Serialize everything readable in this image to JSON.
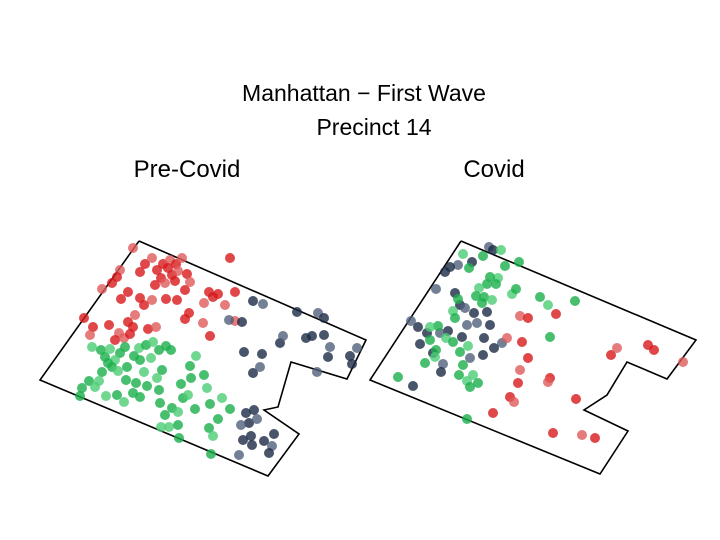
{
  "figure": {
    "title_line1": "Manhattan − First Wave",
    "title_line2": "Precinct 14"
  },
  "colors": {
    "red": "#d7191c",
    "red_light": "#e05a5a",
    "green": "#1aaf4b",
    "green_light": "#4ccd75",
    "navy": "#1c2b45",
    "navy_light": "#50607a",
    "outline": "#000000"
  },
  "chart_data": [
    {
      "type": "scatter",
      "title": "Pre-Covid",
      "marker": "circle",
      "axes_visible": false,
      "series": [
        {
          "color": "red",
          "points": [
            [
              120,
              270
            ],
            [
              117,
              277
            ],
            [
              112,
              283
            ],
            [
              102,
              289
            ],
            [
              128,
              292
            ],
            [
              121,
              299
            ],
            [
              133,
              248
            ],
            [
              145,
              264
            ],
            [
              140,
              272
            ],
            [
              152,
              258
            ],
            [
              157,
              270
            ],
            [
              163,
              264
            ],
            [
              170,
              260
            ],
            [
              176,
              264
            ],
            [
              168,
              268
            ],
            [
              182,
              258
            ],
            [
              161,
              278
            ],
            [
              172,
              275
            ],
            [
              178,
              271
            ],
            [
              187,
              274
            ],
            [
              155,
              285
            ],
            [
              165,
              283
            ],
            [
              175,
              281
            ],
            [
              185,
              290
            ],
            [
              190,
              282
            ],
            [
              177,
              300
            ],
            [
              166,
              299
            ],
            [
              152,
              300
            ],
            [
              140,
              298
            ],
            [
              144,
              305
            ],
            [
              135,
              315
            ],
            [
              128,
              322
            ],
            [
              133,
              327
            ],
            [
              119,
              333
            ],
            [
              109,
              325
            ],
            [
              115,
              340
            ],
            [
              124,
              338
            ],
            [
              130,
              334
            ],
            [
              148,
              329
            ],
            [
              156,
              327
            ],
            [
              185,
              319
            ],
            [
              189,
              313
            ],
            [
              204,
              303
            ],
            [
              209,
              292
            ],
            [
              213,
              297
            ],
            [
              203,
              323
            ],
            [
              210,
              336
            ],
            [
              218,
              294
            ],
            [
              225,
              305
            ],
            [
              230,
              258
            ],
            [
              235,
              292
            ],
            [
              235,
              321
            ],
            [
              93,
              327
            ],
            [
              84,
              318
            ],
            [
              90,
              335
            ]
          ]
        },
        {
          "color": "green",
          "points": [
            [
              92,
              347
            ],
            [
              101,
              350
            ],
            [
              105,
              357
            ],
            [
              110,
              349
            ],
            [
              120,
              353
            ],
            [
              125,
              347
            ],
            [
              115,
              360
            ],
            [
              108,
              363
            ],
            [
              102,
              372
            ],
            [
              99,
              381
            ],
            [
              89,
              381
            ],
            [
              82,
              388
            ],
            [
              95,
              387
            ],
            [
              80,
              396
            ],
            [
              112,
              367
            ],
            [
              118,
              371
            ],
            [
              127,
              367
            ],
            [
              134,
              356
            ],
            [
              139,
              348
            ],
            [
              146,
              345
            ],
            [
              140,
              360
            ],
            [
              153,
              342
            ],
            [
              159,
              350
            ],
            [
              166,
              346
            ],
            [
              151,
              358
            ],
            [
              162,
              370
            ],
            [
              171,
              350
            ],
            [
              144,
              372
            ],
            [
              136,
              383
            ],
            [
              147,
              386
            ],
            [
              157,
              378
            ],
            [
              126,
              380
            ],
            [
              133,
              393
            ],
            [
              124,
              402
            ],
            [
              140,
              397
            ],
            [
              117,
              395
            ],
            [
              106,
              396
            ],
            [
              159,
              390
            ],
            [
              160,
              403
            ],
            [
              161,
              427
            ],
            [
              165,
              415
            ],
            [
              172,
              408
            ],
            [
              178,
              412
            ],
            [
              183,
              398
            ],
            [
              181,
              384
            ],
            [
              188,
              395
            ],
            [
              191,
              378
            ],
            [
              190,
              366
            ],
            [
              196,
              356
            ],
            [
              195,
              409
            ],
            [
              204,
              375
            ],
            [
              207,
              388
            ],
            [
              210,
              404
            ],
            [
              179,
              438
            ],
            [
              169,
              427
            ],
            [
              178,
              425
            ],
            [
              209,
              428
            ],
            [
              213,
              436
            ],
            [
              211,
              454
            ],
            [
              218,
              419
            ],
            [
              222,
              398
            ],
            [
              230,
              409
            ]
          ]
        },
        {
          "color": "navy",
          "points": [
            [
              229,
              320
            ],
            [
              242,
              322
            ],
            [
              253,
              301
            ],
            [
              263,
              304
            ],
            [
              244,
              352
            ],
            [
              253,
              373
            ],
            [
              260,
              367
            ],
            [
              262,
              354
            ],
            [
              280,
              343
            ],
            [
              283,
              336
            ],
            [
              297,
              312
            ],
            [
              306,
              338
            ],
            [
              318,
              313
            ],
            [
              312,
              336
            ],
            [
              324,
              335
            ],
            [
              330,
              347
            ],
            [
              328,
              357
            ],
            [
              324,
              318
            ],
            [
              317,
              372
            ],
            [
              352,
              364
            ],
            [
              350,
              356
            ],
            [
              357,
              348
            ],
            [
              254,
              410
            ],
            [
              249,
              423
            ],
            [
              241,
              425
            ],
            [
              251,
              436
            ],
            [
              243,
              440
            ],
            [
              239,
              455
            ],
            [
              252,
              445
            ],
            [
              264,
              441
            ],
            [
              272,
              446
            ],
            [
              274,
              434
            ],
            [
              269,
              453
            ],
            [
              257,
              419
            ],
            [
              246,
              413
            ]
          ]
        }
      ]
    },
    {
      "type": "scatter",
      "title": "Covid",
      "marker": "circle",
      "axes_visible": false,
      "series": [
        {
          "color": "navy",
          "points": [
            [
              489,
              247
            ],
            [
              493,
              250
            ],
            [
              472,
              262
            ],
            [
              458,
              265
            ],
            [
              450,
              267
            ],
            [
              445,
              272
            ],
            [
              436,
              289
            ],
            [
              455,
              293
            ],
            [
              460,
              305
            ],
            [
              465,
              308
            ],
            [
              474,
              313
            ],
            [
              487,
              312
            ],
            [
              477,
              323
            ],
            [
              490,
              325
            ],
            [
              484,
              338
            ],
            [
              467,
              325
            ],
            [
              462,
              337
            ],
            [
              448,
              331
            ],
            [
              440,
              333
            ],
            [
              427,
              333
            ],
            [
              418,
              327
            ],
            [
              411,
              321
            ],
            [
              420,
              344
            ],
            [
              433,
              353
            ],
            [
              443,
              364
            ],
            [
              441,
              372
            ],
            [
              413,
              386
            ],
            [
              502,
              343
            ],
            [
              494,
              348
            ],
            [
              483,
              355
            ],
            [
              470,
              358
            ]
          ]
        },
        {
          "color": "green",
          "points": [
            [
              463,
              254
            ],
            [
              469,
              268
            ],
            [
              483,
              256
            ],
            [
              501,
              250
            ],
            [
              519,
              262
            ],
            [
              505,
              266
            ],
            [
              498,
              278
            ],
            [
              490,
              277
            ],
            [
              487,
              284
            ],
            [
              479,
              288
            ],
            [
              476,
              296
            ],
            [
              484,
              297
            ],
            [
              492,
              300
            ],
            [
              496,
              284
            ],
            [
              482,
              303
            ],
            [
              512,
              294
            ],
            [
              516,
              289
            ],
            [
              540,
              297
            ],
            [
              548,
              305
            ],
            [
              575,
              301
            ],
            [
              458,
              299
            ],
            [
              453,
              311
            ],
            [
              455,
              318
            ],
            [
              438,
              326
            ],
            [
              430,
              327
            ],
            [
              430,
              340
            ],
            [
              436,
              350
            ],
            [
              446,
              338
            ],
            [
              453,
              342
            ],
            [
              460,
              352
            ],
            [
              468,
              346
            ],
            [
              463,
              365
            ],
            [
              459,
              375
            ],
            [
              467,
              381
            ],
            [
              478,
              383
            ],
            [
              470,
              387
            ],
            [
              473,
              375
            ],
            [
              398,
              377
            ],
            [
              425,
              363
            ],
            [
              435,
              357
            ],
            [
              550,
              337
            ],
            [
              467,
              419
            ]
          ]
        },
        {
          "color": "red",
          "points": [
            [
              520,
              316
            ],
            [
              528,
              318
            ],
            [
              556,
              314
            ],
            [
              507,
              338
            ],
            [
              522,
              342
            ],
            [
              528,
              358
            ],
            [
              520,
              370
            ],
            [
              518,
              383
            ],
            [
              510,
              397
            ],
            [
              514,
              402
            ],
            [
              493,
              413
            ],
            [
              550,
              378
            ],
            [
              548,
              382
            ],
            [
              576,
              399
            ],
            [
              553,
              433
            ],
            [
              582,
              435
            ],
            [
              595,
              438
            ],
            [
              611,
              355
            ],
            [
              617,
              348
            ],
            [
              648,
              345
            ],
            [
              654,
              350
            ],
            [
              683,
              362
            ]
          ]
        }
      ]
    }
  ]
}
